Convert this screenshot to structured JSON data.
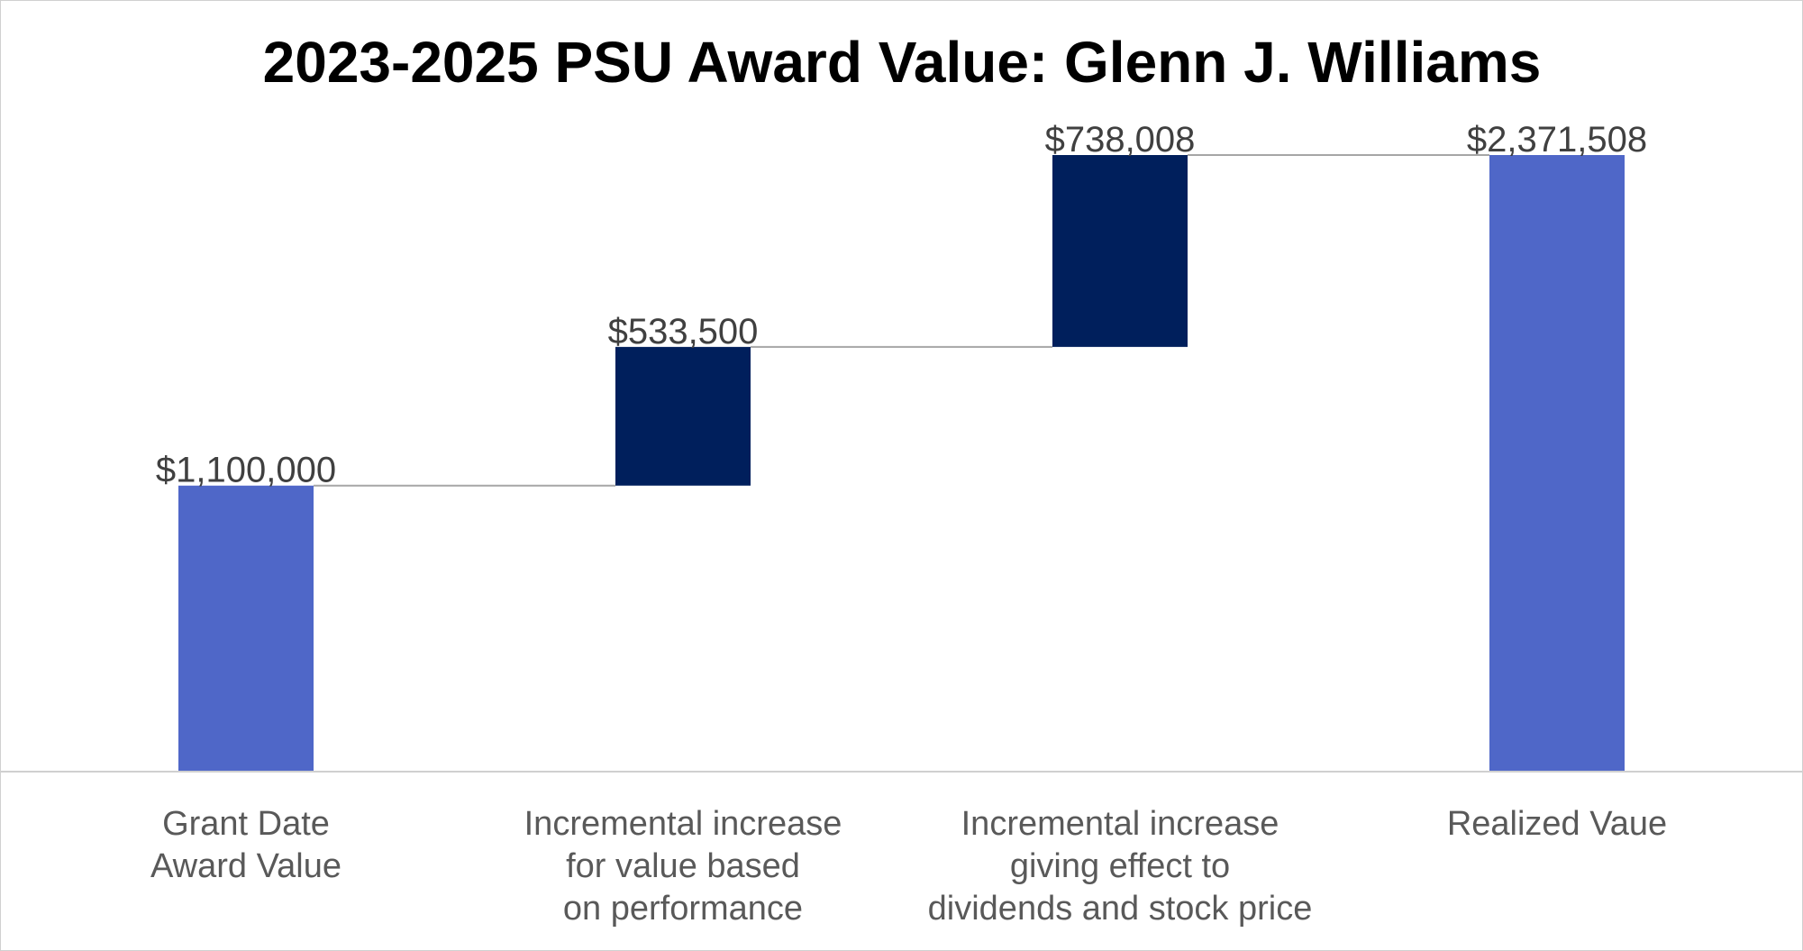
{
  "chart_data": {
    "type": "bar",
    "subtype": "waterfall",
    "title": "2023-2025 PSU Award Value: Glenn J. Williams",
    "categories": [
      [
        "Grant Date",
        "Award Value"
      ],
      [
        "Incremental increase",
        "for value based",
        "on performance"
      ],
      [
        "Incremental increase",
        "giving effect to",
        "dividends and stock price"
      ],
      [
        "Realized Vaue"
      ]
    ],
    "values": [
      1100000,
      533500,
      738008,
      2371508
    ],
    "bar_kinds": [
      "total",
      "increase",
      "increase",
      "total"
    ],
    "value_labels": [
      "$1,100,000",
      "$533,500",
      "$738,008",
      "$2,371,508"
    ],
    "xlabel": "",
    "ylabel": "",
    "ylim": [
      0,
      2371508
    ],
    "grid": false,
    "legend": "none",
    "colors": {
      "total": "#4F67C8",
      "increase": "#001F5C",
      "connector": "#A6A6A6",
      "axis": "#D0D0D0"
    }
  }
}
